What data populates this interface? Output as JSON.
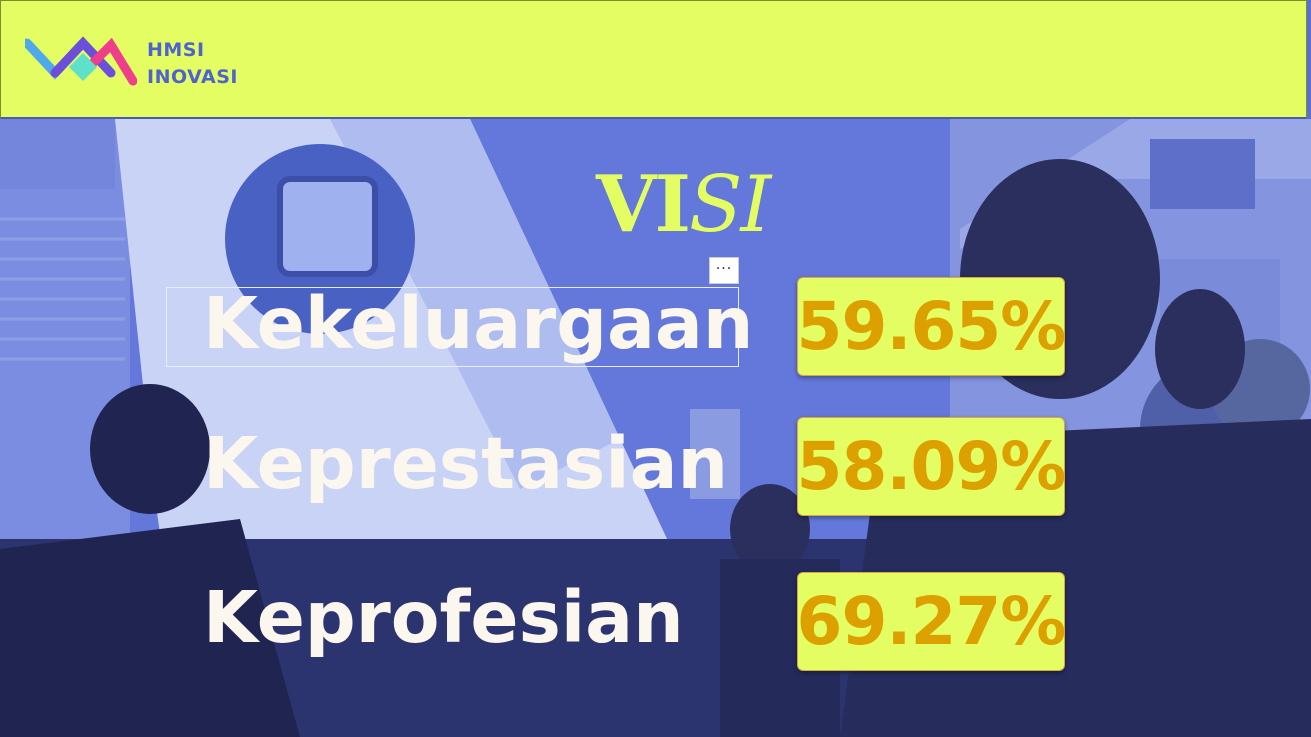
{
  "brand": {
    "line1": "HMSI",
    "line2": "INOVASI"
  },
  "title": {
    "part1": "VI",
    "part2": "SI"
  },
  "rows": [
    {
      "label": "Kekeluargaan",
      "percent": "59.65%"
    },
    {
      "label": "Keprestasian",
      "percent": "58.09%"
    },
    {
      "label": "Keprofesian",
      "percent": "69.27%"
    }
  ],
  "toolbar": {
    "more_label": "···"
  },
  "colors": {
    "accent": "#e3fd62",
    "brand_blue": "#4f63cf",
    "percent_text": "#dca100",
    "overlay": "#5a6fd2"
  }
}
